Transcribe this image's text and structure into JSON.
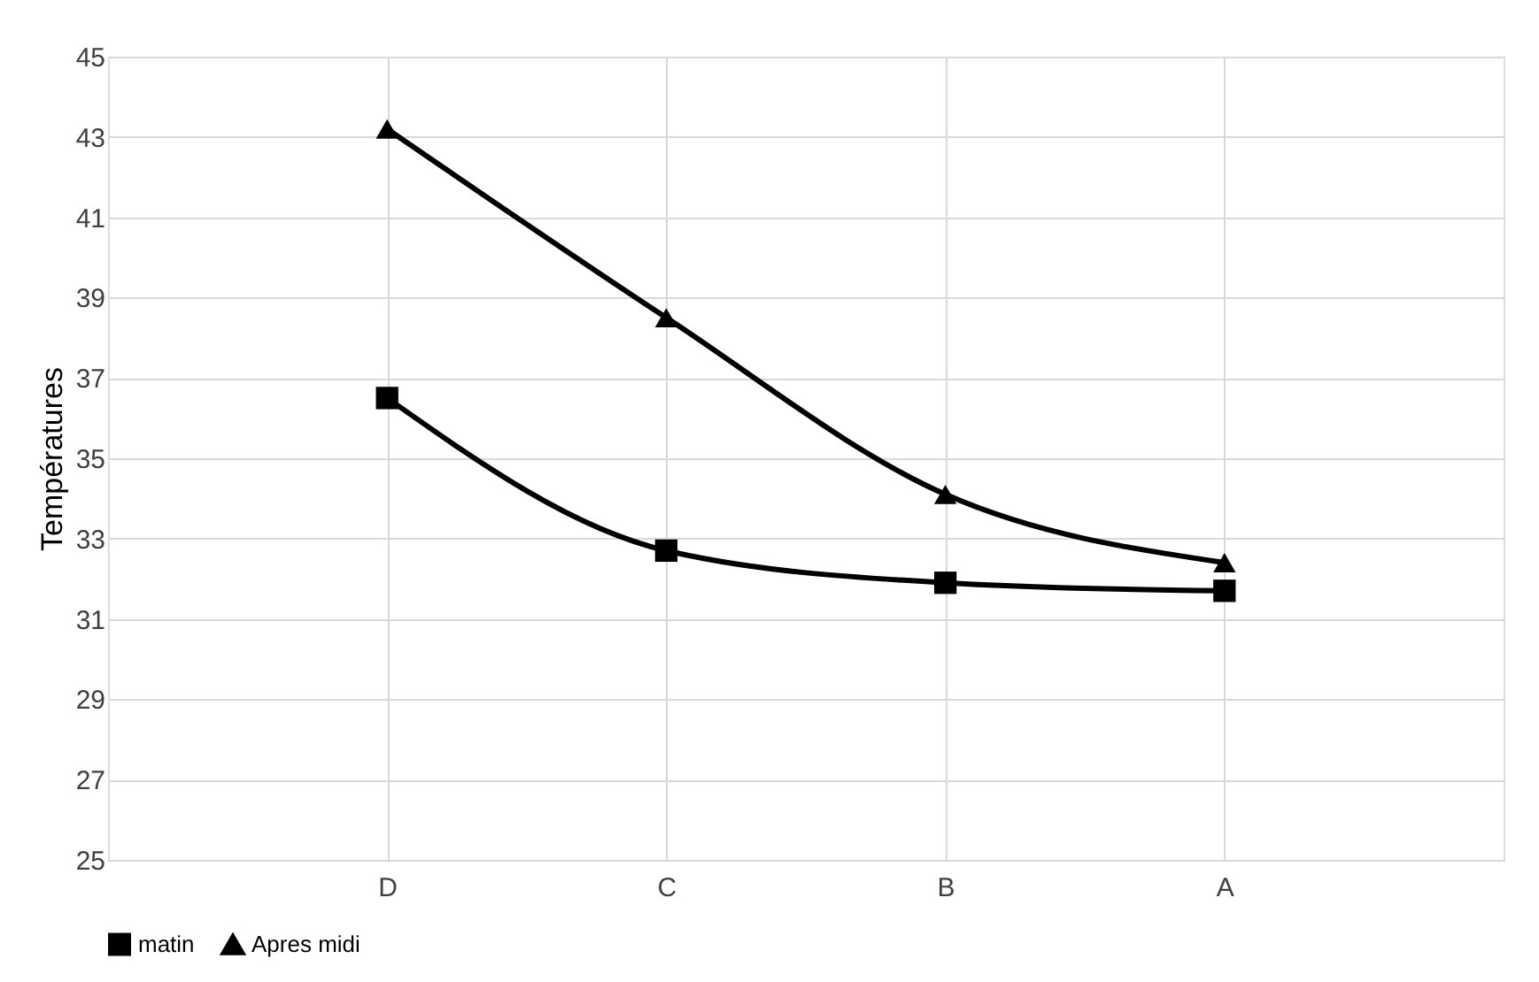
{
  "chart_data": {
    "type": "line",
    "ylabel": "Températures",
    "categories": [
      "D",
      "C",
      "B",
      "A"
    ],
    "series": [
      {
        "name": "matin",
        "color": "#000000",
        "marker": "square",
        "values": [
          36.5,
          32.7,
          31.9,
          31.7
        ]
      },
      {
        "name": "Apres midi",
        "color": "#000000",
        "marker": "triangle",
        "values": [
          43.2,
          38.5,
          34.1,
          32.4
        ]
      }
    ],
    "ylim": [
      25,
      45
    ],
    "yticks": [
      25,
      27,
      29,
      31,
      33,
      35,
      37,
      39,
      41,
      43,
      45
    ],
    "grid": true,
    "legend": "bottom",
    "line_style": "solid"
  }
}
